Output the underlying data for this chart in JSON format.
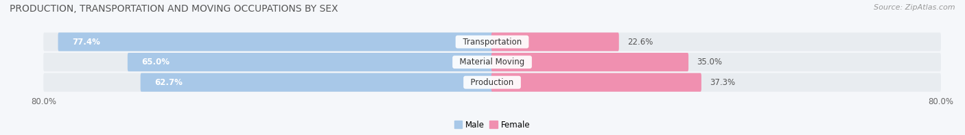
{
  "title": "PRODUCTION, TRANSPORTATION AND MOVING OCCUPATIONS BY SEX",
  "source": "Source: ZipAtlas.com",
  "categories": [
    "Transportation",
    "Material Moving",
    "Production"
  ],
  "male_values": [
    77.4,
    65.0,
    62.7
  ],
  "female_values": [
    22.6,
    35.0,
    37.3
  ],
  "male_color": "#a8c8e8",
  "female_color": "#f090b0",
  "bar_bg_color": "#e8ecf0",
  "background_color": "#f5f7fa",
  "axis_min": -80.0,
  "axis_max": 80.0,
  "legend_male": "Male",
  "legend_female": "Female",
  "title_fontsize": 10,
  "source_fontsize": 8,
  "label_fontsize": 8.5,
  "category_fontsize": 8.5
}
